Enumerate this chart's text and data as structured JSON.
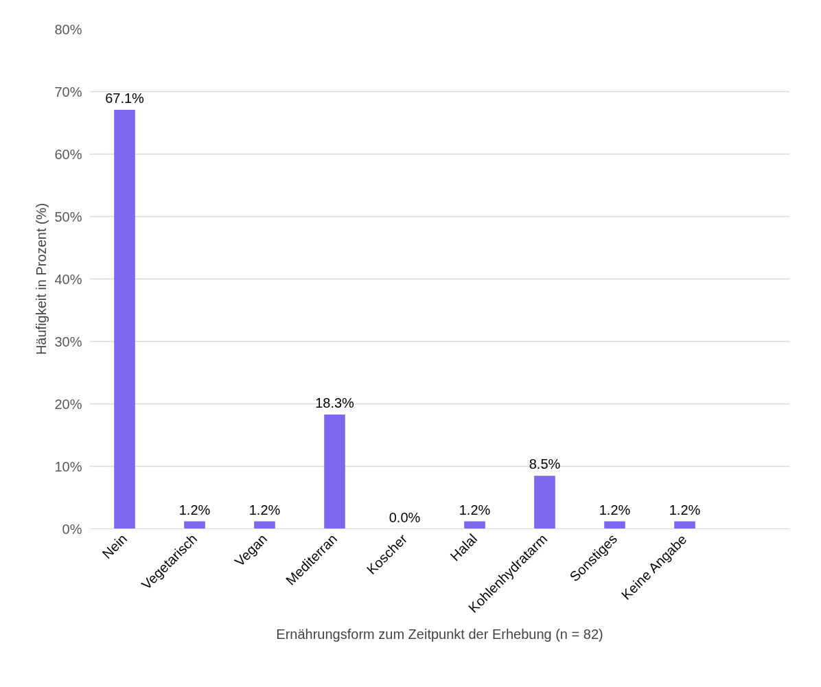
{
  "chart_data": {
    "type": "bar",
    "xlabel": "Ernährungsform zum Zeitpunkt der Erhebung (n = 82)",
    "ylabel": "Häufigkeit in Prozent (%)",
    "categories": [
      "Nein",
      "Vegetarisch",
      "Vegan",
      "Mediterran",
      "Koscher",
      "Halal",
      "Kohlenhydratarm",
      "Sonstiges",
      "Keine Angabe",
      null
    ],
    "values": [
      67.1,
      1.2,
      1.2,
      18.3,
      0.0,
      1.2,
      8.5,
      1.2,
      1.2,
      null
    ],
    "value_labels": [
      "67.1%",
      "1.2%",
      "1.2%",
      "18.3%",
      "0.0%",
      "1.2%",
      "8.5%",
      "1.2%",
      "1.2%",
      null
    ],
    "color": "#7b68ee",
    "ylim": [
      0,
      80
    ],
    "yticks": [
      {
        "value": 0,
        "label": "0%"
      },
      {
        "value": 10,
        "label": "10%"
      },
      {
        "value": 20,
        "label": "20%"
      },
      {
        "value": 30,
        "label": "30%"
      },
      {
        "value": 40,
        "label": "40%"
      },
      {
        "value": 50,
        "label": "50%"
      },
      {
        "value": 60,
        "label": "60%"
      },
      {
        "value": 70,
        "label": "70%"
      },
      {
        "value": 80,
        "label": "80%"
      }
    ],
    "grid": "y"
  }
}
